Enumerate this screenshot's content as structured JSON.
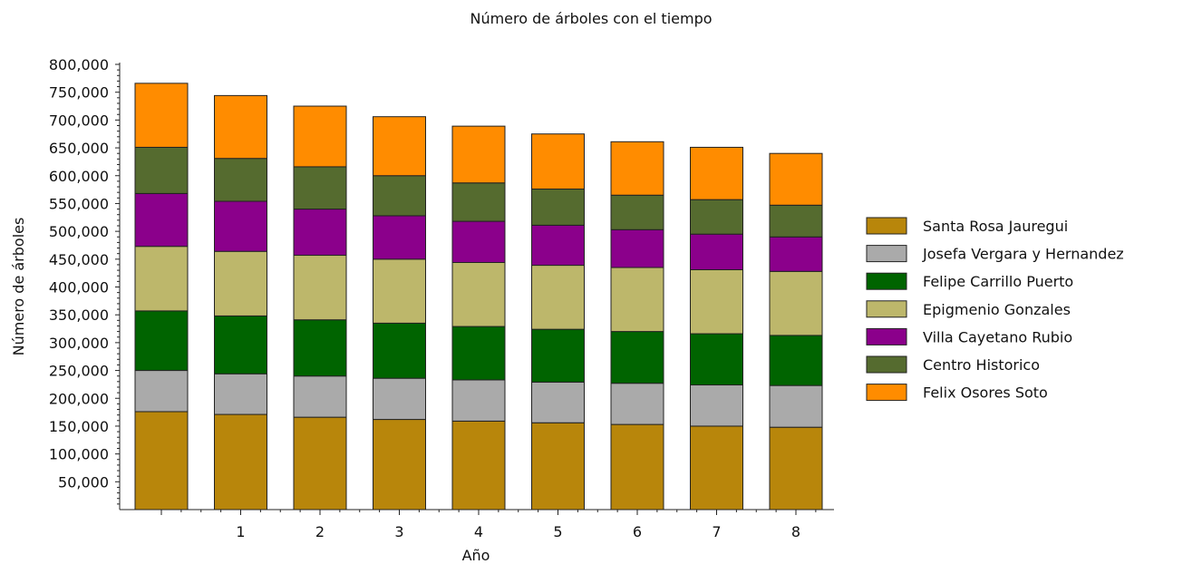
{
  "chart_data": {
    "type": "bar",
    "stacked": true,
    "title": "Número de árboles con el tiempo",
    "xlabel": "Año",
    "ylabel": "Número de árboles",
    "categories": [
      "",
      "1",
      "2",
      "3",
      "4",
      "5",
      "6",
      "7",
      "8"
    ],
    "ylim": [
      0,
      800000
    ],
    "y_ticks": [
      50000,
      100000,
      150000,
      200000,
      250000,
      300000,
      350000,
      400000,
      450000,
      500000,
      550000,
      600000,
      650000,
      700000,
      750000,
      800000
    ],
    "y_tick_labels": [
      "50,000",
      "100,000",
      "150,000",
      "200,000",
      "250,000",
      "300,000",
      "350,000",
      "400,000",
      "450,000",
      "500,000",
      "550,000",
      "600,000",
      "650,000",
      "700,000",
      "750,000",
      "800,000"
    ],
    "grid": false,
    "legend_position": "right",
    "series": [
      {
        "name": "Santa Rosa Jauregui",
        "color": "#b8860b",
        "values": [
          176000,
          171000,
          166000,
          162000,
          159000,
          156000,
          153000,
          150000,
          148000
        ]
      },
      {
        "name": "Josefa Vergara y Hernandez",
        "color": "#aaaaaa",
        "values": [
          74000,
          73000,
          74000,
          74000,
          74000,
          73000,
          74000,
          74000,
          75000
        ]
      },
      {
        "name": "Felipe Carrillo Puerto",
        "color": "#006400",
        "values": [
          107000,
          104000,
          101000,
          99000,
          96000,
          95000,
          93000,
          92000,
          90000
        ]
      },
      {
        "name": "Epigmenio Gonzales",
        "color": "#bdb76b",
        "values": [
          116000,
          116000,
          116000,
          115000,
          115000,
          115000,
          115000,
          115000,
          115000
        ]
      },
      {
        "name": "Villa Cayetano Rubio",
        "color": "#8b008b",
        "values": [
          95000,
          90000,
          83000,
          78000,
          74000,
          72000,
          68000,
          64000,
          62000
        ]
      },
      {
        "name": "Centro Historico",
        "color": "#556b2f",
        "values": [
          83000,
          77000,
          76000,
          72000,
          69000,
          65000,
          62000,
          62000,
          57000
        ]
      },
      {
        "name": "Felix Osores Soto",
        "color": "#ff8c00",
        "values": [
          115000,
          113000,
          109000,
          106000,
          102000,
          99000,
          96000,
          94000,
          93000
        ]
      }
    ]
  }
}
